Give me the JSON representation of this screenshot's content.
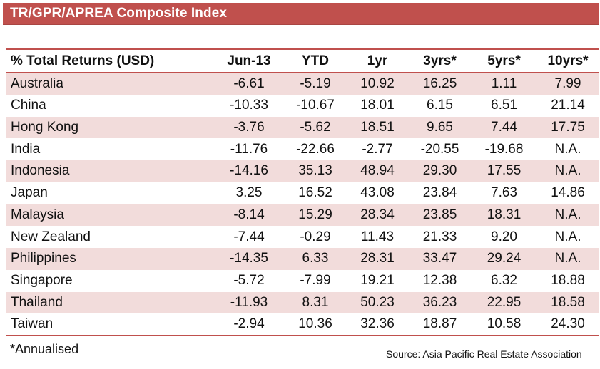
{
  "title": "TR/GPR/APREA Composite Index",
  "table": {
    "headers": [
      "% Total Returns (USD)",
      "Jun-13",
      "YTD",
      "1yr",
      "3yrs*",
      "5yrs*",
      "10yrs*"
    ],
    "rows": [
      [
        "Australia",
        "-6.61",
        "-5.19",
        "10.92",
        "16.25",
        "1.11",
        "7.99"
      ],
      [
        "China",
        "-10.33",
        "-10.67",
        "18.01",
        "6.15",
        "6.51",
        "21.14"
      ],
      [
        "Hong Kong",
        "-3.76",
        "-5.62",
        "18.51",
        "9.65",
        "7.44",
        "17.75"
      ],
      [
        "India",
        "-11.76",
        "-22.66",
        "-2.77",
        "-20.55",
        "-19.68",
        "N.A."
      ],
      [
        "Indonesia",
        "-14.16",
        "35.13",
        "48.94",
        "29.30",
        "17.55",
        "N.A."
      ],
      [
        "Japan",
        "3.25",
        "16.52",
        "43.08",
        "23.84",
        "7.63",
        "14.86"
      ],
      [
        "Malaysia",
        "-8.14",
        "15.29",
        "28.34",
        "23.85",
        "18.31",
        "N.A."
      ],
      [
        "New Zealand",
        "-7.44",
        "-0.29",
        "11.43",
        "21.33",
        "9.20",
        "N.A."
      ],
      [
        "Philippines",
        "-14.35",
        "6.33",
        "28.31",
        "33.47",
        "29.24",
        "N.A."
      ],
      [
        "Singapore",
        "-5.72",
        "-7.99",
        "19.21",
        "12.38",
        "6.32",
        "18.88"
      ],
      [
        "Thailand",
        "-11.93",
        "8.31",
        "50.23",
        "36.23",
        "22.95",
        "18.58"
      ],
      [
        "Taiwan",
        "-2.94",
        "10.36",
        "32.36",
        "18.87",
        "10.58",
        "24.30"
      ]
    ]
  },
  "footnote": "*Annualised",
  "source": "Source: Asia Pacific Real Estate Association",
  "colors": {
    "accent": "#c0504d",
    "band": "#f2dcdb"
  }
}
